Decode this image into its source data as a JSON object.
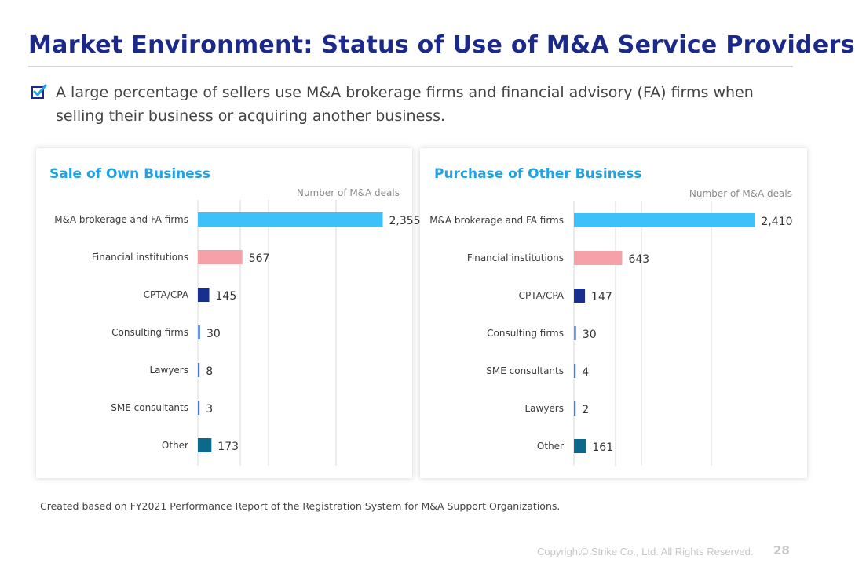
{
  "page": {
    "title": "Market Environment: Status of Use of M&A Service Providers",
    "bullet": "A large percentage of sellers use M&A brokerage firms and financial advisory (FA) firms when selling their business or acquiring another business.",
    "source": "Created based on FY2021 Performance Report of the Registration System for M&A Support Organizations.",
    "copyright": "Copyright© Strike Co., Ltd. All Rights Reserved.",
    "page_number": "28",
    "bullet_icon": "checkbox-icon",
    "colors": {
      "title": "#1b2a8a",
      "panel_title": "#1ea3e6",
      "check": "#1ea3e6"
    }
  },
  "chart_data": [
    {
      "type": "bar",
      "orientation": "horizontal",
      "title": "Sale of Own Business",
      "xlabel": "Number of M&A deals",
      "categories": [
        "M&A brokerage and FA firms",
        "Financial institutions",
        "CPTA/CPA",
        "Consulting firms",
        "Lawyers",
        "SME consultants",
        "Other"
      ],
      "values": [
        2355,
        567,
        145,
        30,
        8,
        3,
        173
      ],
      "value_labels": [
        "2,355",
        "567",
        "145",
        "30",
        "8",
        "3",
        "173"
      ],
      "colors": [
        "#3ec1fb",
        "#f6a1a8",
        "#172f8e",
        "#6d8fe0",
        "#4a78d0",
        "#4a78d0",
        "#0b6a8c"
      ],
      "xlim": [
        0,
        2500
      ],
      "grid": true
    },
    {
      "type": "bar",
      "orientation": "horizontal",
      "title": "Purchase of Other Business",
      "xlabel": "Number of M&A deals",
      "categories": [
        "M&A brokerage and FA firms",
        "Financial institutions",
        "CPTA/CPA",
        "Consulting firms",
        "SME consultants",
        "Lawyers",
        "Other"
      ],
      "values": [
        2410,
        643,
        147,
        30,
        4,
        2,
        161
      ],
      "value_labels": [
        "2,410",
        "643",
        "147",
        "30",
        "4",
        "2",
        "161"
      ],
      "colors": [
        "#3ec1fb",
        "#f6a1a8",
        "#172f8e",
        "#6d8fe0",
        "#4a78d0",
        "#4a78d0",
        "#0b6a8c"
      ],
      "xlim": [
        0,
        2500
      ],
      "grid": true
    }
  ]
}
